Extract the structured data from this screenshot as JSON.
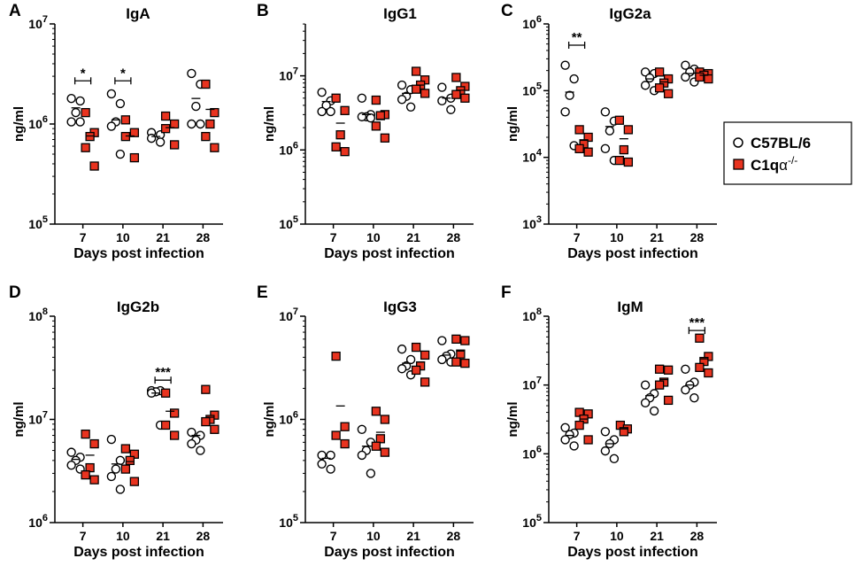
{
  "figure": {
    "x_axis_label": "Days post infection",
    "y_axis_label": "ng/ml",
    "legend": [
      {
        "name": "C57BL/6",
        "marker": "circle-open",
        "label": "C57BL/6"
      },
      {
        "name": "C1qa-/-",
        "marker": "square-red",
        "label_main": "C1q",
        "label_greek": "α",
        "label_sup": "-/-"
      }
    ]
  },
  "colors": {
    "ko_fill": "#e8331f",
    "wt_fill": "#ffffff",
    "axis": "#000000"
  },
  "chart_data": [
    {
      "type": "scatter",
      "panel": "A",
      "title": "IgA",
      "yscale": "log",
      "ylim_exp": [
        5,
        7
      ],
      "categories": [
        "7",
        "10",
        "21",
        "28"
      ],
      "xlabel": "Days post infection",
      "ylabel": "ng/ml",
      "series": [
        {
          "name": "C57BL/6",
          "values": [
            [
              1800000.0,
              1700000.0,
              1300000.0,
              1050000.0,
              1050000.0
            ],
            [
              2000000.0,
              1600000.0,
              1050000.0,
              950000.0,
              500000.0
            ],
            [
              820000.0,
              780000.0,
              720000.0,
              660000.0
            ],
            [
              3200000.0,
              2500000.0,
              1500000.0,
              1000000.0,
              1000000.0
            ]
          ],
          "means": [
            1450000.0,
            1100000.0,
            750000.0,
            1800000.0
          ]
        },
        {
          "name": "C1qa-/-",
          "values": [
            [
              1300000.0,
              820000.0,
              750000.0,
              580000.0,
              380000.0
            ],
            [
              1100000.0,
              820000.0,
              750000.0,
              460000.0
            ],
            [
              1200000.0,
              1000000.0,
              900000.0,
              620000.0
            ],
            [
              2500000.0,
              1300000.0,
              1000000.0,
              750000.0,
              580000.0
            ]
          ],
          "means": [
            760000.0,
            760000.0,
            920000.0,
            1400000.0
          ]
        }
      ],
      "significance": [
        {
          "day": "7",
          "label": "*",
          "y": 2700000.0
        },
        {
          "day": "10",
          "label": "*",
          "y": 2700000.0
        }
      ]
    },
    {
      "type": "scatter",
      "panel": "B",
      "title": "IgG1",
      "yscale": "log",
      "ylim_exp": [
        5,
        7.7
      ],
      "categories": [
        "7",
        "10",
        "21",
        "28"
      ],
      "xlabel": "Days post infection",
      "ylabel": "ng/ml",
      "series": [
        {
          "name": "C57BL/6",
          "values": [
            [
              6000000.0,
              4600000.0,
              4000000.0,
              3300000.0,
              3300000.0
            ],
            [
              5000000.0,
              3000000.0,
              2800000.0,
              2800000.0,
              2700000.0
            ],
            [
              7500000.0,
              6500000.0,
              5300000.0,
              4800000.0,
              3800000.0
            ],
            [
              7000000.0,
              5000000.0,
              4600000.0,
              3500000.0
            ]
          ],
          "means": [
            4500000.0,
            3000000.0,
            5800000.0,
            5000000.0
          ]
        },
        {
          "name": "C1qa-/-",
          "values": [
            [
              5000000.0,
              3400000.0,
              1600000.0,
              1100000.0,
              950000.0
            ],
            [
              4700000.0,
              3000000.0,
              2900000.0,
              2100000.0,
              1450000.0
            ],
            [
              11500000.0,
              8800000.0,
              7500000.0,
              6600000.0,
              5800000.0
            ],
            [
              9500000.0,
              7200000.0,
              6300000.0,
              5600000.0,
              5000000.0
            ]
          ],
          "means": [
            2300000.0,
            2600000.0,
            7500000.0,
            6400000.0
          ]
        }
      ],
      "significance": []
    },
    {
      "type": "scatter",
      "panel": "C",
      "title": "IgG2a",
      "yscale": "log",
      "ylim_exp": [
        3,
        6
      ],
      "categories": [
        "7",
        "10",
        "21",
        "28"
      ],
      "xlabel": "Days post infection",
      "ylabel": "ng/ml",
      "series": [
        {
          "name": "C57BL/6",
          "values": [
            [
              240000.0,
              150000.0,
              85000.0,
              48000.0,
              15000.0
            ],
            [
              48000.0,
              35000.0,
              25000.0,
              13500.0,
              9000.0
            ],
            [
              190000.0,
              180000.0,
              155000.0,
              120000.0,
              100000.0
            ],
            [
              240000.0,
              210000.0,
              190000.0,
              160000.0,
              135000.0
            ]
          ],
          "means": [
            95000.0,
            29000.0,
            150000.0,
            180000.0
          ]
        },
        {
          "name": "C1qa-/-",
          "values": [
            [
              26000.0,
              20000.0,
              16000.0,
              13500.0,
              12000.0
            ],
            [
              36000.0,
              26000.0,
              13000.0,
              9000.0,
              8500.0
            ],
            [
              190000.0,
              150000.0,
              130000.0,
              110000.0,
              90000.0
            ],
            [
              190000.0,
              180000.0,
              170000.0,
              160000.0,
              150000.0
            ]
          ],
          "means": [
            18000.0,
            19000.0,
            135000.0,
            170000.0
          ]
        }
      ],
      "significance": [
        {
          "day": "7",
          "label": "**",
          "y": 480000.0
        }
      ]
    },
    {
      "type": "scatter",
      "panel": "D",
      "title": "IgG2b",
      "yscale": "log",
      "ylim_exp": [
        6,
        8
      ],
      "categories": [
        "7",
        "10",
        "21",
        "28"
      ],
      "xlabel": "Days post infection",
      "ylabel": "ng/ml",
      "series": [
        {
          "name": "C57BL/6",
          "values": [
            [
              4800000.0,
              4300000.0,
              4000000.0,
              3600000.0,
              3300000.0
            ],
            [
              6400000.0,
              4000000.0,
              3300000.0,
              2800000.0,
              2100000.0
            ],
            [
              19000000.0,
              19000000.0,
              18500000.0,
              18000000.0,
              8800000.0
            ],
            [
              7500000.0,
              7000000.0,
              6300000.0,
              5800000.0,
              5000000.0
            ]
          ],
          "means": [
            4100000.0,
            3700000.0,
            18000000.0,
            7000000.0
          ]
        },
        {
          "name": "C1qa-/-",
          "values": [
            [
              7200000.0,
              5800000.0,
              3400000.0,
              2900000.0,
              2600000.0
            ],
            [
              5200000.0,
              4600000.0,
              4000000.0,
              3300000.0,
              2500000.0
            ],
            [
              18000000.0,
              11500000.0,
              8800000.0,
              7000000.0
            ],
            [
              19500000.0,
              11000000.0,
              10000000.0,
              9500000.0,
              8000000.0
            ]
          ],
          "means": [
            4500000.0,
            3900000.0,
            12000000.0,
            10500000.0
          ]
        }
      ],
      "significance": [
        {
          "day": "21",
          "label": "***",
          "y": 24000000.0
        }
      ]
    },
    {
      "type": "scatter",
      "panel": "E",
      "title": "IgG3",
      "yscale": "log",
      "ylim_exp": [
        5,
        7
      ],
      "categories": [
        "7",
        "10",
        "21",
        "28"
      ],
      "xlabel": "Days post infection",
      "ylabel": "ng/ml",
      "series": [
        {
          "name": "C57BL/6",
          "values": [
            [
              450000.0,
              450000.0,
              370000.0,
              330000.0
            ],
            [
              800000.0,
              600000.0,
              500000.0,
              450000.0,
              300000.0
            ],
            [
              4800000.0,
              3800000.0,
              3300000.0,
              3100000.0,
              2700000.0
            ],
            [
              5800000.0,
              4300000.0,
              4100000.0,
              3800000.0,
              3600000.0
            ]
          ],
          "means": [
            420000.0,
            550000.0,
            3500000.0,
            4200000.0
          ]
        },
        {
          "name": "C1qa-/-",
          "values": [
            [
              4100000.0,
              850000.0,
              700000.0,
              580000.0
            ],
            [
              1200000.0,
              1000000.0,
              650000.0,
              550000.0,
              480000.0
            ],
            [
              5000000.0,
              4200000.0,
              3300000.0,
              3000000.0,
              2300000.0
            ],
            [
              6000000.0,
              5800000.0,
              4300000.0,
              3600000.0,
              3500000.0
            ]
          ],
          "means": [
            1350000.0,
            750000.0,
            3600000.0,
            4600000.0
          ]
        }
      ],
      "significance": []
    },
    {
      "type": "scatter",
      "panel": "F",
      "title": "IgM",
      "yscale": "log",
      "ylim_exp": [
        5,
        8
      ],
      "categories": [
        "7",
        "10",
        "21",
        "28"
      ],
      "xlabel": "Days post infection",
      "ylabel": "ng/ml",
      "series": [
        {
          "name": "C57BL/6",
          "values": [
            [
              2400000.0,
              2000000.0,
              1900000.0,
              1600000.0,
              1300000.0
            ],
            [
              2100000.0,
              1600000.0,
              1400000.0,
              1100000.0,
              850000.0
            ],
            [
              10000000.0,
              7500000.0,
              6500000.0,
              5500000.0,
              4200000.0
            ],
            [
              17000000.0,
              11000000.0,
              10000000.0,
              8500000.0,
              6500000.0
            ]
          ],
          "means": [
            1850000.0,
            1400000.0,
            7000000.0,
            10000000.0
          ]
        },
        {
          "name": "C1qa-/-",
          "values": [
            [
              4000000.0,
              3800000.0,
              3200000.0,
              2600000.0,
              1600000.0
            ],
            [
              2600000.0,
              2300000.0,
              2100000.0
            ],
            [
              17000000.0,
              16500000.0,
              11000000.0,
              10000000.0,
              6000000.0
            ],
            [
              48000000.0,
              26000000.0,
              22000000.0,
              18000000.0,
              15000000.0
            ]
          ],
          "means": [
            3200000.0,
            2300000.0,
            12000000.0,
            24000000.0
          ]
        }
      ],
      "significance": [
        {
          "day": "28",
          "label": "***",
          "y": 62000000.0
        }
      ]
    }
  ]
}
